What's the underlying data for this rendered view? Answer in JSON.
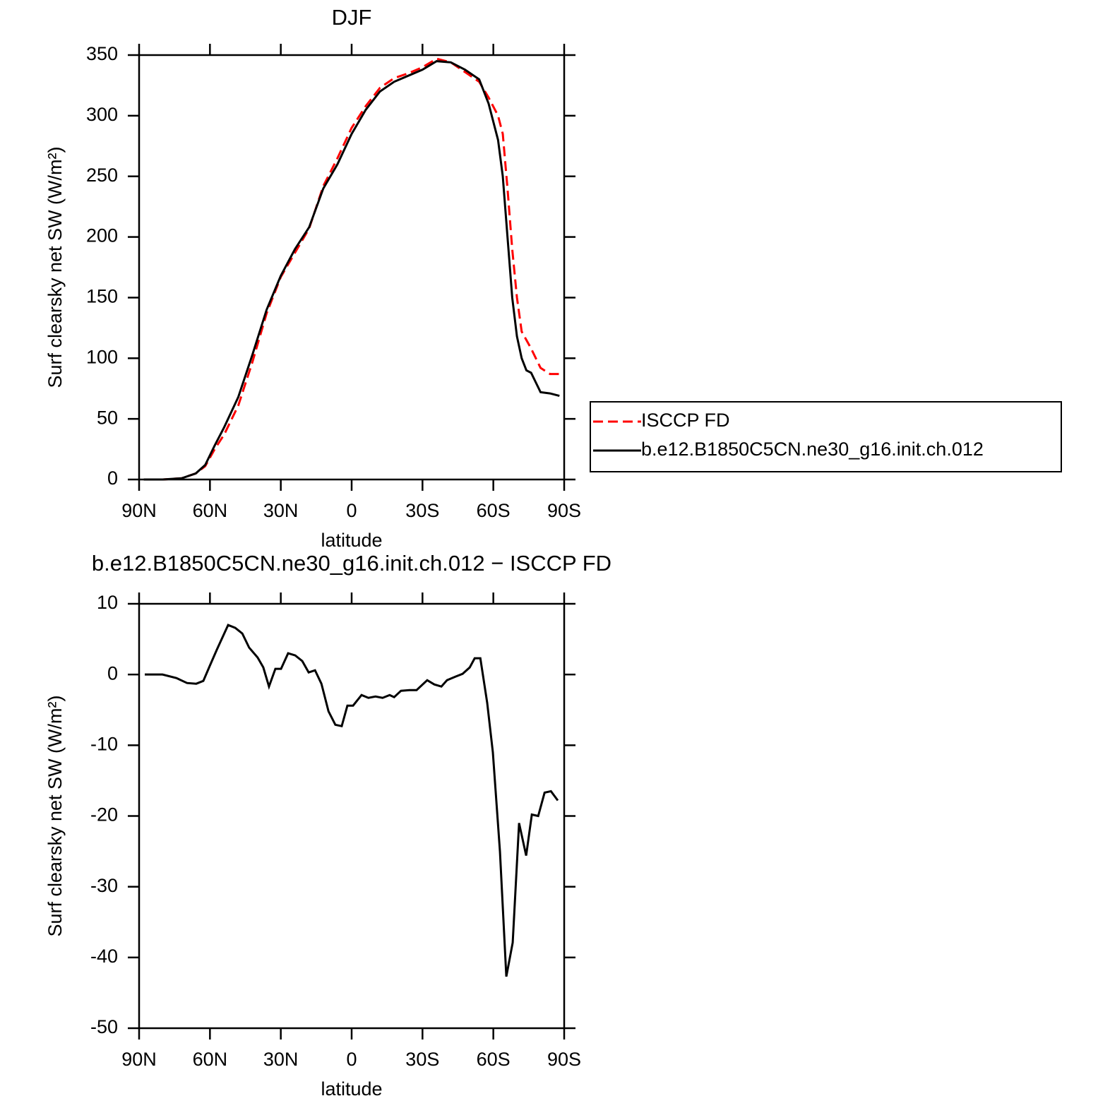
{
  "chart_data": [
    {
      "type": "line",
      "title": "DJF",
      "x_label": "latitude",
      "y_label": "Surf clearsky net SW (W/m²)",
      "x": [
        88,
        80,
        72,
        66,
        62,
        58,
        54,
        48,
        42,
        36,
        30,
        24,
        18,
        12,
        6,
        0,
        -6,
        -12,
        -18,
        -24,
        -30,
        -36,
        -42,
        -48,
        -54,
        -58,
        -62,
        -64,
        -66,
        -68,
        -70,
        -72,
        -74,
        -76,
        -78,
        -80,
        -84,
        -88
      ],
      "series": [
        {
          "name": "ISCCP FD",
          "color": "#ff0000",
          "style": "dashed",
          "values": [
            0,
            0,
            1,
            5,
            11,
            25,
            37,
            61,
            97,
            137,
            167,
            187,
            207,
            242,
            265,
            290,
            308,
            323,
            331,
            335,
            340,
            347,
            344,
            336,
            328,
            315,
            300,
            285,
            240,
            190,
            150,
            122,
            115,
            108,
            100,
            92,
            87,
            87
          ]
        },
        {
          "name": "b.e12.B1850C5CN.ne30_g16.init.ch.012",
          "color": "#000000",
          "style": "solid",
          "values": [
            0,
            0,
            1,
            5,
            12,
            28,
            43,
            68,
            103,
            140,
            168,
            190,
            208,
            240,
            260,
            285,
            305,
            320,
            328,
            333,
            338,
            345,
            344,
            338,
            330,
            310,
            280,
            250,
            200,
            150,
            118,
            100,
            90,
            88,
            80,
            72,
            71,
            69
          ]
        }
      ],
      "xlim": [
        90,
        -90
      ],
      "xticks": [
        {
          "value": 90,
          "label": "90N"
        },
        {
          "value": 60,
          "label": "60N"
        },
        {
          "value": 30,
          "label": "30N"
        },
        0,
        {
          "value": -30,
          "label": "30S"
        },
        {
          "value": -60,
          "label": "60S"
        },
        {
          "value": -90,
          "label": "90S"
        }
      ],
      "ylim": [
        0,
        350
      ],
      "yticks": [
        0,
        50,
        100,
        150,
        200,
        250,
        300,
        350
      ],
      "legend": "right"
    },
    {
      "type": "line",
      "title": "b.e12.B1850C5CN.ne30_g16.init.ch.012 − ISCCP FD",
      "x_label": "latitude",
      "y_label": "Surf clearsky net SW (W/m²)",
      "x": [
        87.6,
        80.1,
        74.2,
        69.7,
        65.8,
        62.8,
        60.1,
        57.1,
        52.3,
        49.3,
        46.3,
        43.4,
        39.8,
        37.4,
        35.0,
        32.3,
        29.9,
        26.9,
        23.9,
        20.9,
        18.2,
        15.5,
        12.8,
        9.8,
        6.9,
        4.2,
        1.8,
        -0.6,
        -4.2,
        -7.1,
        -10.1,
        -13.1,
        -16.1,
        -18.0,
        -20.9,
        -24.5,
        -27.5,
        -32.0,
        -35.0,
        -38.0,
        -40.4,
        -44.0,
        -47.0,
        -50.0,
        -52.1,
        -54.5,
        -57.4,
        -59.8,
        -62.8,
        -65.5,
        -68.2,
        -70.9,
        -73.9,
        -76.3,
        -79.0,
        -81.7,
        -84.4,
        -87.3
      ],
      "series": [
        {
          "name": null,
          "color": "#000000",
          "style": "solid",
          "values": [
            0,
            0,
            -0.5,
            -1.2,
            -1.3,
            -0.9,
            1.2,
            3.5,
            7,
            6.6,
            5.8,
            3.8,
            2.4,
            1,
            -1.7,
            0.8,
            0.8,
            3,
            2.7,
            1.9,
            0.3,
            0.6,
            -1.3,
            -5.2,
            -7.1,
            -7.3,
            -4.4,
            -4.4,
            -2.9,
            -3.3,
            -3.1,
            -3.3,
            -2.9,
            -3.2,
            -2.3,
            -2.2,
            -2.2,
            -0.8,
            -1.4,
            -1.7,
            -0.8,
            -0.3,
            0.1,
            1,
            2.3,
            2.3,
            -4,
            -11,
            -25,
            -42.7,
            -37.9,
            -21,
            -25.6,
            -19.8,
            -20,
            -16.7,
            -16.5,
            -17.8
          ]
        }
      ],
      "xlim": [
        90,
        -90
      ],
      "xticks": [
        {
          "value": 90,
          "label": "90N"
        },
        {
          "value": 60,
          "label": "60N"
        },
        {
          "value": 30,
          "label": "30N"
        },
        0,
        {
          "value": -30,
          "label": "30S"
        },
        {
          "value": -60,
          "label": "60S"
        },
        {
          "value": -90,
          "label": "90S"
        }
      ],
      "ylim": [
        -50,
        10
      ],
      "yticks": [
        -50,
        -40,
        -30,
        -20,
        -10,
        0,
        10
      ]
    }
  ]
}
